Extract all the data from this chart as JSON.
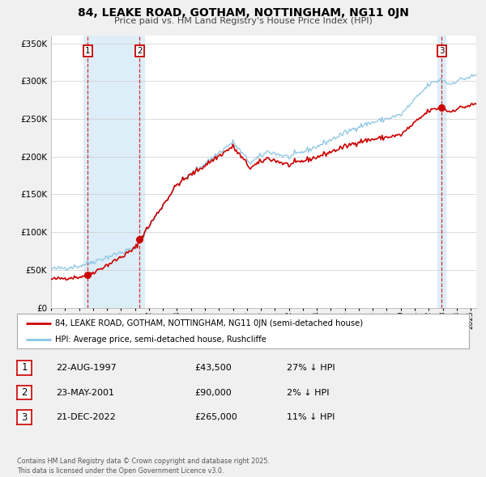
{
  "title": "84, LEAKE ROAD, GOTHAM, NOTTINGHAM, NG11 0JN",
  "subtitle": "Price paid vs. HM Land Registry's House Price Index (HPI)",
  "legend_property": "84, LEAKE ROAD, GOTHAM, NOTTINGHAM, NG11 0JN (semi-detached house)",
  "legend_hpi": "HPI: Average price, semi-detached house, Rushcliffe",
  "property_color": "#cc0000",
  "hpi_color": "#89c4e1",
  "background_color": "#f0f0f0",
  "plot_bg_color": "#ffffff",
  "grid_color": "#cccccc",
  "shade_color": "#ddeef8",
  "ylim": [
    0,
    360000
  ],
  "yticks": [
    0,
    50000,
    100000,
    150000,
    200000,
    250000,
    300000,
    350000
  ],
  "ytick_labels": [
    "£0",
    "£50K",
    "£100K",
    "£150K",
    "£200K",
    "£250K",
    "£300K",
    "£350K"
  ],
  "sale_years": [
    1997.625,
    2001.333,
    2022.917
  ],
  "sale_prices": [
    43500,
    90000,
    265000
  ],
  "sale_labels": [
    "1",
    "2",
    "3"
  ],
  "footnote": "Contains HM Land Registry data © Crown copyright and database right 2025.\nThis data is licensed under the Open Government Licence v3.0.",
  "table_rows": [
    {
      "label": "1",
      "date": "22-AUG-1997",
      "price": "£43,500",
      "hpi_diff": "27% ↓ HPI"
    },
    {
      "label": "2",
      "date": "23-MAY-2001",
      "price": "£90,000",
      "hpi_diff": "2% ↓ HPI"
    },
    {
      "label": "3",
      "date": "21-DEC-2022",
      "price": "£265,000",
      "hpi_diff": "11% ↓ HPI"
    }
  ]
}
